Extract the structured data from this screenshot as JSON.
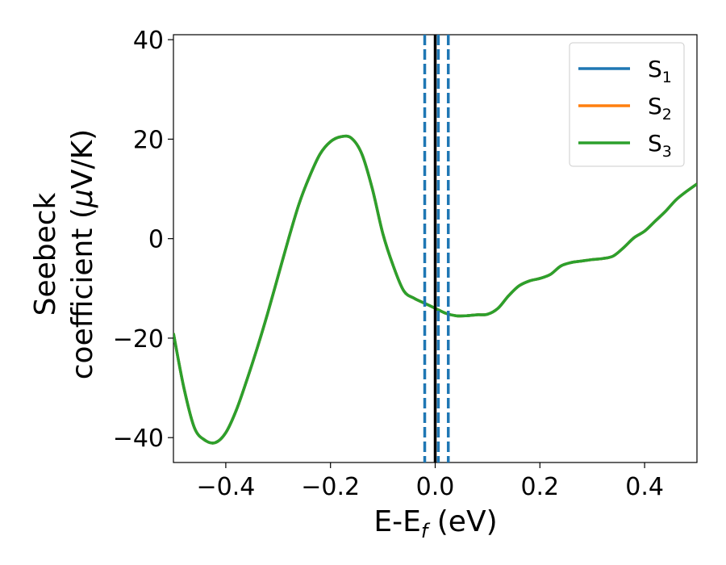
{
  "chart_data": {
    "type": "line",
    "xlabel": {
      "main": "E-E",
      "sub": "f",
      "tail": " (eV)"
    },
    "ylabel": {
      "line1": "Seebeck",
      "line2_prefix": "coefficient  (",
      "mu": "μ",
      "line2_suffix": "V/K)"
    },
    "xlim": [
      -0.5,
      0.5
    ],
    "ylim": [
      -45,
      41
    ],
    "xticks": [
      -0.4,
      -0.2,
      0.0,
      0.2,
      0.4
    ],
    "xtick_labels": [
      "−0.4",
      "−0.2",
      "0.0",
      "0.2",
      "0.4"
    ],
    "yticks": [
      -40,
      -20,
      0,
      20,
      40
    ],
    "ytick_labels": [
      "−40",
      "−20",
      "0",
      "20",
      "40"
    ],
    "legend_position": "top-right",
    "series": [
      {
        "name": "S",
        "sub": "1",
        "color": "#1f77b4"
      },
      {
        "name": "S",
        "sub": "2",
        "color": "#ff7f0e"
      },
      {
        "name": "S",
        "sub": "3",
        "color": "#2ca02c"
      }
    ],
    "x": [
      -0.5,
      -0.48,
      -0.46,
      -0.44,
      -0.42,
      -0.4,
      -0.38,
      -0.36,
      -0.34,
      -0.32,
      -0.3,
      -0.28,
      -0.26,
      -0.24,
      -0.22,
      -0.2,
      -0.18,
      -0.16,
      -0.14,
      -0.12,
      -0.1,
      -0.08,
      -0.06,
      -0.04,
      -0.02,
      0.0,
      0.02,
      0.04,
      0.06,
      0.08,
      0.1,
      0.12,
      0.14,
      0.16,
      0.18,
      0.2,
      0.22,
      0.24,
      0.26,
      0.28,
      0.3,
      0.32,
      0.34,
      0.36,
      0.38,
      0.4,
      0.42,
      0.44,
      0.46,
      0.48,
      0.5
    ],
    "y": [
      -19,
      -30,
      -38,
      -40.5,
      -41,
      -39,
      -34.5,
      -28.5,
      -22,
      -15,
      -7.5,
      0,
      7,
      12.5,
      17,
      19.5,
      20.5,
      20.2,
      17,
      10,
      1,
      -5.5,
      -10.5,
      -12,
      -13,
      -14,
      -15,
      -15.5,
      -15.5,
      -15.3,
      -15.2,
      -14,
      -11.5,
      -9.5,
      -8.5,
      -8,
      -7.2,
      -5.5,
      -4.8,
      -4.5,
      -4.2,
      -4,
      -3.5,
      -1.8,
      0.2,
      1.5,
      3.5,
      5.5,
      7.8,
      9.5,
      11
    ],
    "reference_lines": [
      {
        "x": 0.0,
        "style": "solid",
        "color": "#000000"
      },
      {
        "x": -0.02,
        "style": "dashed",
        "color": "#1f77b4"
      },
      {
        "x": 0.006,
        "style": "dashed",
        "color": "#1f77b4"
      },
      {
        "x": 0.025,
        "style": "dashed",
        "color": "#1f77b4"
      }
    ]
  }
}
